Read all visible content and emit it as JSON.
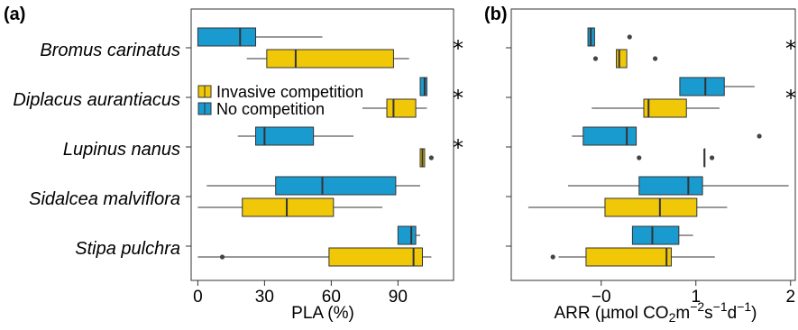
{
  "chart_data": [
    {
      "type": "box",
      "panel_label": "(a)",
      "xlabel": "PLA (%)",
      "xlim": [
        -3,
        115
      ],
      "xticks": [
        0,
        30,
        60,
        90
      ],
      "categories": [
        "Bromus carinatus",
        "Diplacus aurantiacus",
        "Lupinus nanus",
        "Sidalcea malviflora",
        "Stipa pulchra"
      ],
      "legend": {
        "placement": "left-middle",
        "items": [
          {
            "label": "Invasive competition",
            "color": "#f0c808"
          },
          {
            "label": "No competition",
            "color": "#1a9bd0"
          }
        ]
      },
      "significance": [
        "*",
        "*",
        "*",
        "",
        ""
      ],
      "series": [
        {
          "name": "Invasive competition",
          "color": "#f0c808",
          "boxes": [
            {
              "whisker_low": 22,
              "q1": 31,
              "median": 44,
              "q3": 88,
              "whisker_high": 95,
              "outliers": []
            },
            {
              "whisker_low": 74,
              "q1": 85,
              "median": 88,
              "q3": 98,
              "whisker_high": 103,
              "outliers": []
            },
            {
              "whisker_low": 100,
              "q1": 100,
              "median": 101,
              "q3": 102,
              "whisker_high": 102,
              "outliers": [
                105
              ]
            },
            {
              "whisker_low": 0,
              "q1": 20,
              "median": 40,
              "q3": 61,
              "whisker_high": 83,
              "outliers": []
            },
            {
              "whisker_low": 0,
              "q1": 59,
              "median": 97,
              "q3": 101,
              "whisker_high": 105,
              "outliers": [
                11
              ]
            }
          ]
        },
        {
          "name": "No competition",
          "color": "#1a9bd0",
          "boxes": [
            {
              "whisker_low": 0,
              "q1": 0,
              "median": 19,
              "q3": 26,
              "whisker_high": 56,
              "outliers": []
            },
            {
              "whisker_low": 100,
              "q1": 100,
              "median": 102,
              "q3": 103,
              "whisker_high": 103,
              "outliers": []
            },
            {
              "whisker_low": 18,
              "q1": 26,
              "median": 30,
              "q3": 52,
              "whisker_high": 70,
              "outliers": []
            },
            {
              "whisker_low": 4,
              "q1": 35,
              "median": 56,
              "q3": 89,
              "whisker_high": 100,
              "outliers": []
            },
            {
              "whisker_low": 90,
              "q1": 90,
              "median": 96,
              "q3": 98,
              "whisker_high": 100,
              "outliers": []
            }
          ]
        }
      ]
    },
    {
      "type": "box",
      "panel_label": "(b)",
      "xlabel_parts": {
        "prefix": "ARR (µmol CO",
        "sub": "2",
        "mid1": "m",
        "sup1": "−2",
        "mid2": "s",
        "sup2": "−1",
        "mid3": "d",
        "sup3": "−1",
        "suffix": ")"
      },
      "xlim": [
        -0.95,
        2.05
      ],
      "xticks": [
        0,
        1,
        2
      ],
      "categories": [
        "Bromus carinatus",
        "Diplacus aurantiacus",
        "Lupinus nanus",
        "Sidalcea malviflora",
        "Stipa pulchra"
      ],
      "significance": [
        "*",
        "*",
        "",
        "",
        ""
      ],
      "series": [
        {
          "name": "Invasive competition",
          "color": "#f0c808",
          "boxes": [
            {
              "whisker_low": 0.16,
              "q1": 0.16,
              "median": 0.19,
              "q3": 0.27,
              "whisker_high": 0.27,
              "outliers": [
                -0.06,
                0.57
              ]
            },
            {
              "whisker_low": -0.1,
              "q1": 0.45,
              "median": 0.5,
              "q3": 0.9,
              "whisker_high": 1.25,
              "outliers": []
            },
            {
              "whisker_low": 1.09,
              "q1": 1.09,
              "median": 1.09,
              "q3": 1.09,
              "whisker_high": 1.09,
              "outliers": [
                0.4,
                1.17
              ]
            },
            {
              "whisker_low": -0.77,
              "q1": 0.04,
              "median": 0.62,
              "q3": 1.01,
              "whisker_high": 1.33,
              "outliers": []
            },
            {
              "whisker_low": -0.45,
              "q1": -0.16,
              "median": 0.69,
              "q3": 0.74,
              "whisker_high": 1.2,
              "outliers": [
                -0.51
              ]
            }
          ]
        },
        {
          "name": "No competition",
          "color": "#1a9bd0",
          "boxes": [
            {
              "whisker_low": -0.14,
              "q1": -0.14,
              "median": -0.11,
              "q3": -0.07,
              "whisker_high": -0.07,
              "outliers": [
                0.3
              ]
            },
            {
              "whisker_low": 0.83,
              "q1": 0.83,
              "median": 1.1,
              "q3": 1.3,
              "whisker_high": 1.62,
              "outliers": []
            },
            {
              "whisker_low": -0.31,
              "q1": -0.19,
              "median": 0.27,
              "q3": 0.37,
              "whisker_high": 0.37,
              "outliers": [
                1.67
              ]
            },
            {
              "whisker_low": -0.35,
              "q1": 0.4,
              "median": 0.92,
              "q3": 1.07,
              "whisker_high": 1.98,
              "outliers": []
            },
            {
              "whisker_low": 0.33,
              "q1": 0.33,
              "median": 0.54,
              "q3": 0.82,
              "whisker_high": 0.97,
              "outliers": []
            }
          ]
        }
      ]
    }
  ]
}
